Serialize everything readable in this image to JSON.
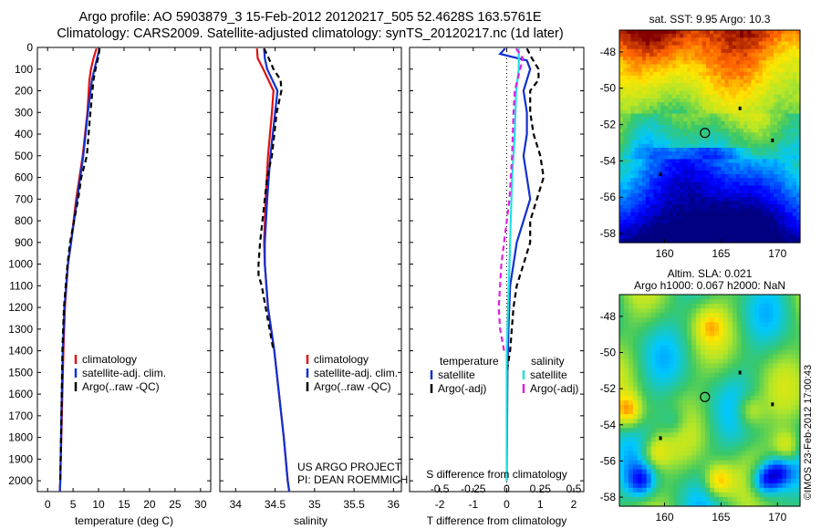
{
  "titles": {
    "line1": "Argo profile: AO 5903879_3 15-Feb-2012 20120217_505 52.4628S 163.5761E",
    "line2": "Climatology: CARS2009. Satellite-adjusted climatology: synTS_20120217.nc (1d later)"
  },
  "colors": {
    "climatology": "#e01010",
    "satellite": "#1030d0",
    "argo": "#000000",
    "salinity_sat": "#20e0e0",
    "salinity_argo": "#e020e0"
  },
  "chart_data": [
    {
      "type": "line",
      "name": "temperature",
      "xlabel": "temperature (deg C)",
      "xlim": [
        -2,
        32
      ],
      "xticks": [
        0,
        5,
        10,
        15,
        20,
        25,
        30
      ],
      "ylim": [
        2050,
        0
      ],
      "yticks": [
        0,
        100,
        200,
        300,
        400,
        500,
        600,
        700,
        800,
        900,
        1000,
        1100,
        1200,
        1300,
        1400,
        1500,
        1600,
        1700,
        1800,
        1900,
        2000
      ],
      "legend": [
        "climatology",
        "satellite-adj. clim.",
        "Argo(..raw -QC)"
      ],
      "series": [
        {
          "name": "climatology",
          "style": "solid",
          "color": "#e01010",
          "depth": [
            5,
            50,
            100,
            150,
            300,
            500,
            700,
            900,
            1000,
            1200,
            1400,
            1700,
            2000,
            2050
          ],
          "values": [
            9.6,
            9.0,
            8.5,
            8.2,
            7.8,
            6.9,
            5.6,
            4.6,
            4.0,
            3.4,
            3.1,
            2.8,
            2.5,
            2.4
          ]
        },
        {
          "name": "satellite-adj. clim.",
          "style": "solid",
          "color": "#1030d0",
          "depth": [
            5,
            50,
            100,
            150,
            300,
            500,
            700,
            900,
            1000,
            1200,
            1400,
            1700,
            2000,
            2050
          ],
          "values": [
            10.2,
            9.7,
            9.2,
            8.7,
            7.9,
            7.0,
            5.8,
            4.6,
            4.0,
            3.3,
            3.0,
            2.7,
            2.5,
            2.4
          ]
        },
        {
          "name": "Argo(..raw -QC)",
          "style": "dashed",
          "color": "#000000",
          "depth": [
            5,
            50,
            100,
            150,
            300,
            500,
            600,
            700,
            800,
            900,
            1000,
            1200,
            1400,
            1700,
            2000
          ],
          "values": [
            10.2,
            9.9,
            9.4,
            9.0,
            8.4,
            7.7,
            6.6,
            6.0,
            5.2,
            4.4,
            3.9,
            3.2,
            2.9,
            2.7,
            2.5
          ]
        }
      ],
      "annotations": []
    },
    {
      "type": "line",
      "name": "salinity",
      "xlabel": "salinity",
      "xlim": [
        33.8,
        36.1
      ],
      "xticks": [
        34,
        34.5,
        35,
        35.5,
        36
      ],
      "ylim": [
        2050,
        0
      ],
      "legend": [
        "climatology",
        "satellite-adj. clim.",
        "Argo(..raw -QC)"
      ],
      "series": [
        {
          "name": "climatology",
          "style": "solid",
          "color": "#e01010",
          "depth": [
            5,
            50,
            100,
            200,
            300,
            500,
            700,
            900,
            1000,
            1200,
            1400,
            1600,
            1800,
            2000,
            2050
          ],
          "values": [
            34.27,
            34.28,
            34.35,
            34.48,
            34.46,
            34.41,
            34.38,
            34.36,
            34.37,
            34.41,
            34.49,
            34.55,
            34.61,
            34.66,
            34.68
          ]
        },
        {
          "name": "satellite-adj. clim.",
          "style": "solid",
          "color": "#1030d0",
          "depth": [
            5,
            50,
            100,
            200,
            300,
            500,
            700,
            900,
            1000,
            1200,
            1400,
            1600,
            1800,
            2000,
            2050
          ],
          "values": [
            34.36,
            34.37,
            34.4,
            34.53,
            34.5,
            34.44,
            34.4,
            34.37,
            34.37,
            34.41,
            34.49,
            34.55,
            34.61,
            34.66,
            34.68
          ]
        },
        {
          "name": "Argo(..raw -QC)",
          "style": "dashed",
          "color": "#000000",
          "depth": [
            5,
            50,
            100,
            150,
            200,
            300,
            500,
            600,
            700,
            800,
            900,
            1000,
            1050,
            1100,
            1200,
            1300,
            1400
          ],
          "values": [
            34.36,
            34.42,
            34.48,
            34.57,
            34.58,
            34.52,
            34.46,
            34.4,
            34.37,
            34.34,
            34.31,
            34.29,
            34.29,
            34.33,
            34.38,
            34.43,
            34.48
          ]
        }
      ],
      "annotations": [
        "US ARGO PROJECT",
        "PI: DEAN ROEMMICH"
      ]
    },
    {
      "type": "line",
      "name": "difference",
      "xlabel": "T difference from climatology",
      "top_axis_label": "S difference from climatology",
      "xlim": [
        -2.9,
        2.3
      ],
      "xticks": [
        -2,
        -1,
        0,
        1,
        2
      ],
      "top_ticks": [
        -0.5,
        -0.25,
        0,
        0.25,
        0.5
      ],
      "ylim": [
        2050,
        0
      ],
      "legend_titles": [
        "temperature",
        "salinity"
      ],
      "legend": [
        "satellite",
        "Argo(-adj)",
        "satellite",
        "Argo(-adj)"
      ],
      "series": [
        {
          "name": "temperature satellite",
          "style": "solid",
          "color": "#1030d0",
          "depth": [
            5,
            30,
            60,
            100,
            200,
            300,
            400,
            500,
            600,
            700,
            800,
            900,
            1000,
            1100,
            1300,
            1500,
            2000
          ],
          "values": [
            -0.05,
            -0.2,
            0.6,
            0.7,
            0.5,
            0.6,
            0.6,
            0.5,
            0.6,
            0.7,
            0.5,
            0.3,
            0.2,
            0.1,
            0.05,
            0.02,
            0.0
          ]
        },
        {
          "name": "temperature Argo(-adj)",
          "style": "dashed",
          "color": "#000000",
          "depth": [
            5,
            50,
            100,
            150,
            200,
            300,
            400,
            500,
            600,
            700,
            800,
            900,
            1000,
            1100,
            1200,
            1400,
            1500
          ],
          "values": [
            0.6,
            0.75,
            0.95,
            0.95,
            0.7,
            0.7,
            0.8,
            1.0,
            1.1,
            0.9,
            0.7,
            0.7,
            0.5,
            0.3,
            0.2,
            0.1,
            0.0
          ]
        },
        {
          "name": "salinity satellite",
          "style": "solid",
          "color": "#20e0e0",
          "depth": [
            5,
            100,
            200,
            400,
            600,
            800,
            1000,
            1200,
            1400,
            2000
          ],
          "values": [
            0.09,
            0.09,
            0.07,
            0.06,
            0.04,
            0.03,
            0.02,
            0.01,
            0.0,
            0.0
          ]
        },
        {
          "name": "salinity Argo(-adj)",
          "style": "dashed",
          "color": "#e020e0",
          "depth": [
            5,
            50,
            100,
            200,
            300,
            500,
            700,
            900,
            1000,
            1100,
            1200,
            1300,
            1400
          ],
          "values": [
            0.07,
            0.12,
            0.1,
            0.06,
            0.05,
            0.04,
            0.02,
            -0.02,
            -0.04,
            -0.05,
            -0.06,
            -0.05,
            -0.02
          ]
        }
      ],
      "annotations": []
    },
    {
      "type": "heatmap",
      "name": "sst-map",
      "title": "sat. SST: 9.95 Argo: 10.3",
      "xlim": [
        156,
        172
      ],
      "ylim": [
        -58.5,
        -46.8
      ],
      "xticks": [
        160,
        165,
        170
      ],
      "yticks": [
        -48,
        -50,
        -52,
        -54,
        -56,
        -58
      ],
      "marker": {
        "lon": 163.58,
        "lat": -52.46
      }
    },
    {
      "type": "heatmap",
      "name": "sla-map",
      "title": "Altim. SLA: 0.021",
      "subtitle": "Argo h1000: 0.067 h2000: NaN",
      "xlim": [
        156,
        172
      ],
      "ylim": [
        -58.5,
        -46.8
      ],
      "xticks": [
        160,
        165,
        170
      ],
      "yticks": [
        -48,
        -50,
        -52,
        -54,
        -56,
        -58
      ],
      "marker": {
        "lon": 163.58,
        "lat": -52.46
      }
    }
  ],
  "watermark": "©IMOS 23-Feb-2012 17:00:43"
}
